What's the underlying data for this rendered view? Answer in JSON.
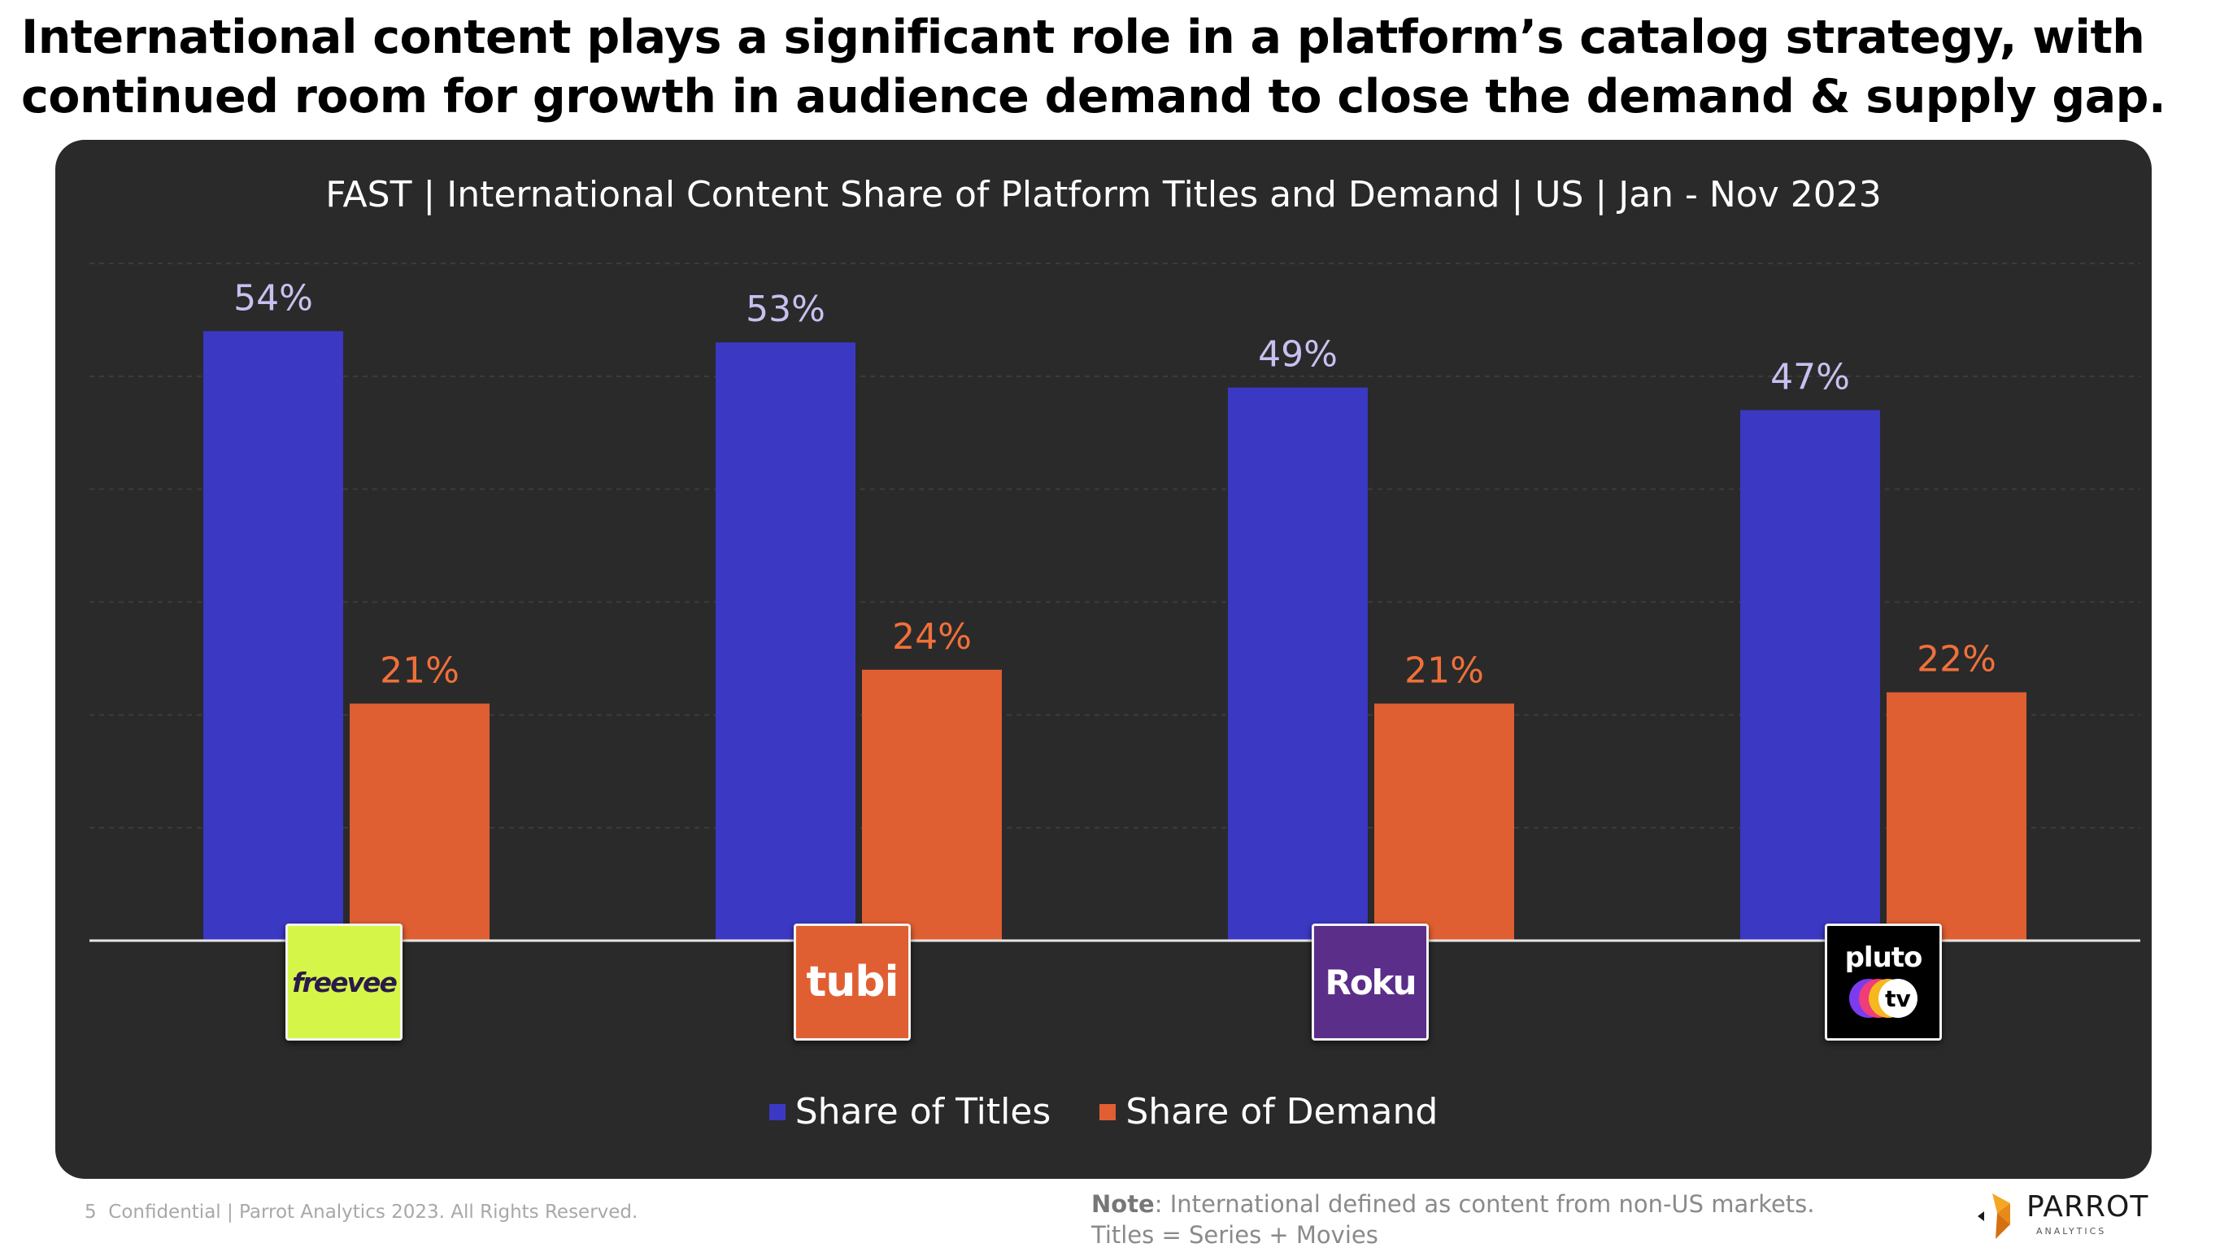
{
  "headline": {
    "line1": "International content plays a significant role in a platform’s catalog strategy, with",
    "line2": "continued room for growth in audience demand to close the demand & supply gap."
  },
  "colors": {
    "titles": "#3b38c4",
    "demand": "#e05f32",
    "panel": "#2a2a2a",
    "titles_label": "#c8c0f0",
    "demand_label": "#f0703a"
  },
  "platforms": [
    {
      "name": "freevee",
      "icon": "freevee-logo"
    },
    {
      "name": "tubi",
      "icon": "tubi-logo"
    },
    {
      "name": "Roku",
      "icon": "roku-logo"
    },
    {
      "name": "pluto",
      "sub": "tv",
      "icon": "pluto-tv-logo"
    }
  ],
  "chart_data": {
    "type": "bar",
    "title": "FAST | International Content Share of Platform Titles and Demand | US | Jan - Nov 2023",
    "categories": [
      "freevee",
      "tubi",
      "Roku",
      "pluto tv"
    ],
    "series": [
      {
        "name": "Share of Titles",
        "values": [
          54,
          53,
          49,
          47
        ],
        "labels": [
          "54%",
          "53%",
          "49%",
          "47%"
        ]
      },
      {
        "name": "Share of Demand",
        "values": [
          21,
          24,
          21,
          22
        ],
        "labels": [
          "21%",
          "24%",
          "21%",
          "22%"
        ]
      }
    ],
    "ylim": [
      0,
      60
    ],
    "grid": true,
    "legend_position": "bottom"
  },
  "legend": {
    "titles_label": "Share of Titles",
    "demand_label": "Share of Demand"
  },
  "footer": {
    "page_number": "5",
    "confidential": "Confidential  |  Parrot Analytics 2023. All Rights Reserved.",
    "note_label": "Note",
    "note_text": ": International defined as content from non-US markets.",
    "note_line2": "Titles = Series + Movies",
    "brand_name": "PARROT",
    "brand_sub": "ANALYTICS"
  }
}
